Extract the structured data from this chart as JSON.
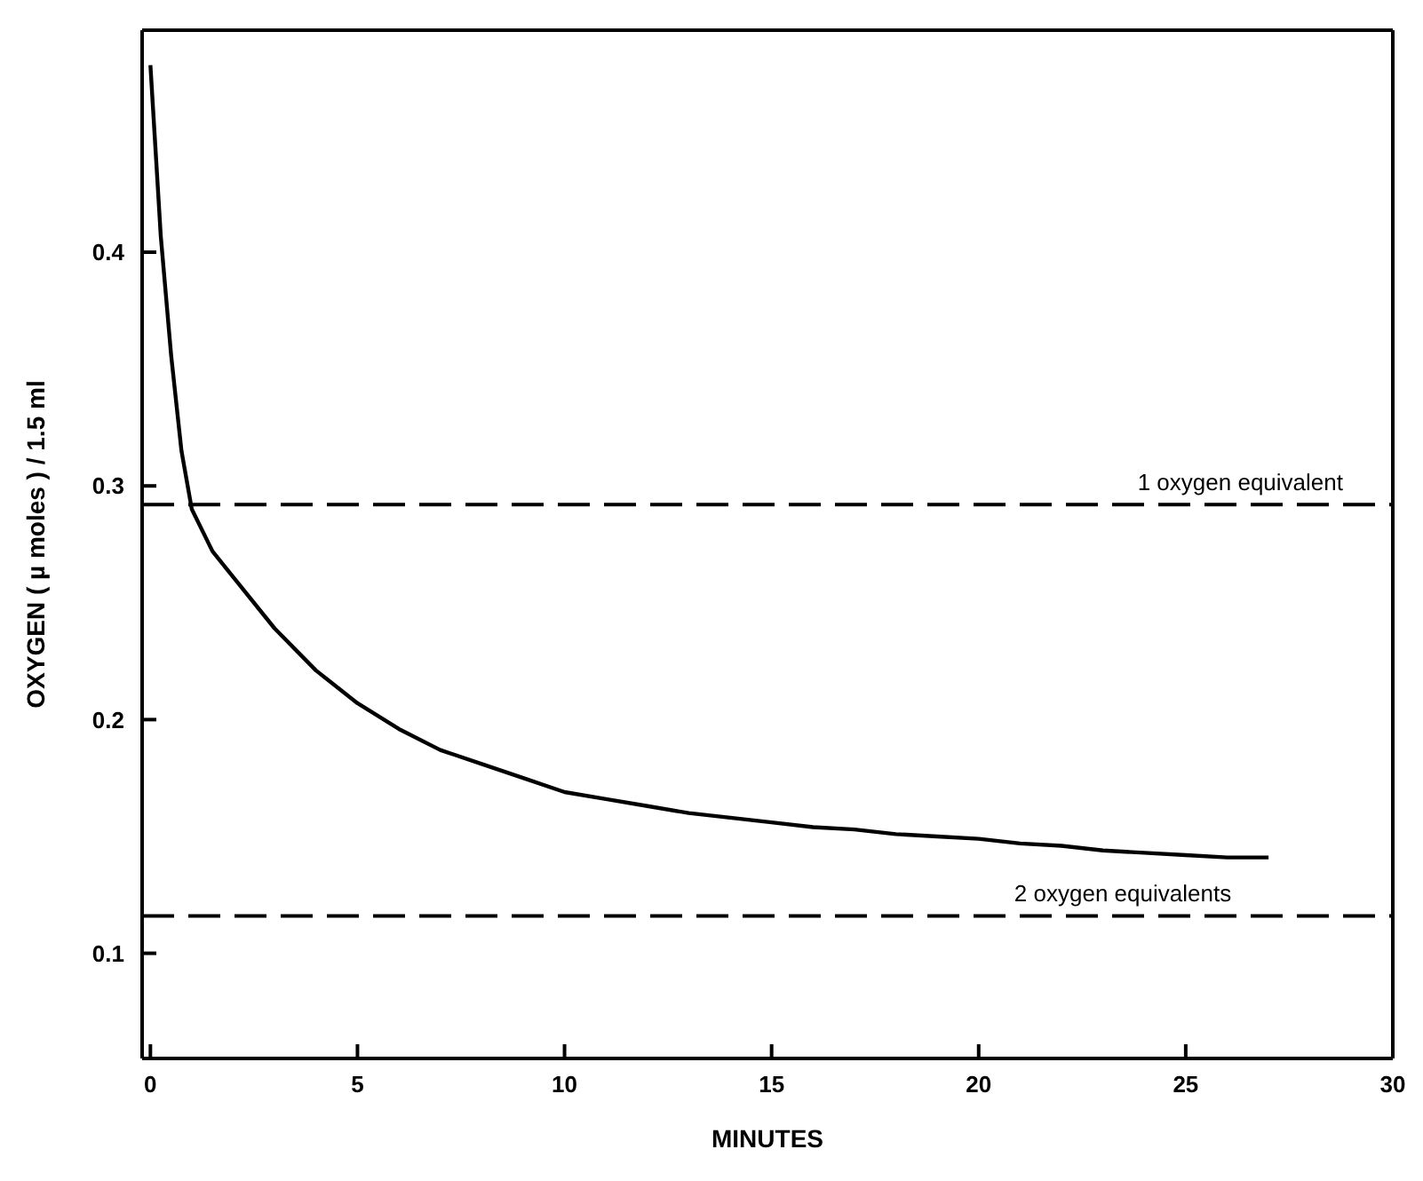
{
  "chart_data": {
    "type": "line",
    "xlabel": "MINUTES",
    "ylabel": "OXYGEN ( µ moles ) / 1.5 ml",
    "x": [
      0,
      0.25,
      0.5,
      0.75,
      1,
      1.5,
      2,
      3,
      4,
      5,
      6,
      7,
      8,
      9,
      10,
      11,
      12,
      13,
      14,
      15,
      16,
      17,
      18,
      19,
      20,
      21,
      22,
      23,
      24,
      25,
      26,
      27
    ],
    "series": [
      {
        "color": "#000000",
        "values": [
          0.48,
          0.407,
          0.356,
          0.315,
          0.29,
          0.272,
          0.261,
          0.239,
          0.221,
          0.207,
          0.196,
          0.187,
          0.181,
          0.175,
          0.169,
          0.166,
          0.163,
          0.16,
          0.158,
          0.156,
          0.154,
          0.153,
          0.151,
          0.15,
          0.149,
          0.147,
          0.146,
          0.144,
          0.143,
          0.142,
          0.141,
          0.141
        ]
      }
    ],
    "xlim": [
      -0.2,
      30
    ],
    "xticks": [
      0,
      5,
      10,
      15,
      20,
      25,
      30
    ],
    "ylim": [
      0.055,
      0.495
    ],
    "yticks": [
      0.1,
      0.2,
      0.3,
      0.4
    ],
    "ref_lines": [
      {
        "axis": "y",
        "value": 0.292,
        "label": "1 oxygen equivalent",
        "line_style": "dashed",
        "color": "#000000"
      },
      {
        "axis": "y",
        "value": 0.116,
        "label": "2 oxygen equivalents",
        "line_style": "dashed",
        "color": "#000000"
      }
    ],
    "grid": false,
    "legend": false,
    "marker": "none",
    "line_style": "solid"
  }
}
